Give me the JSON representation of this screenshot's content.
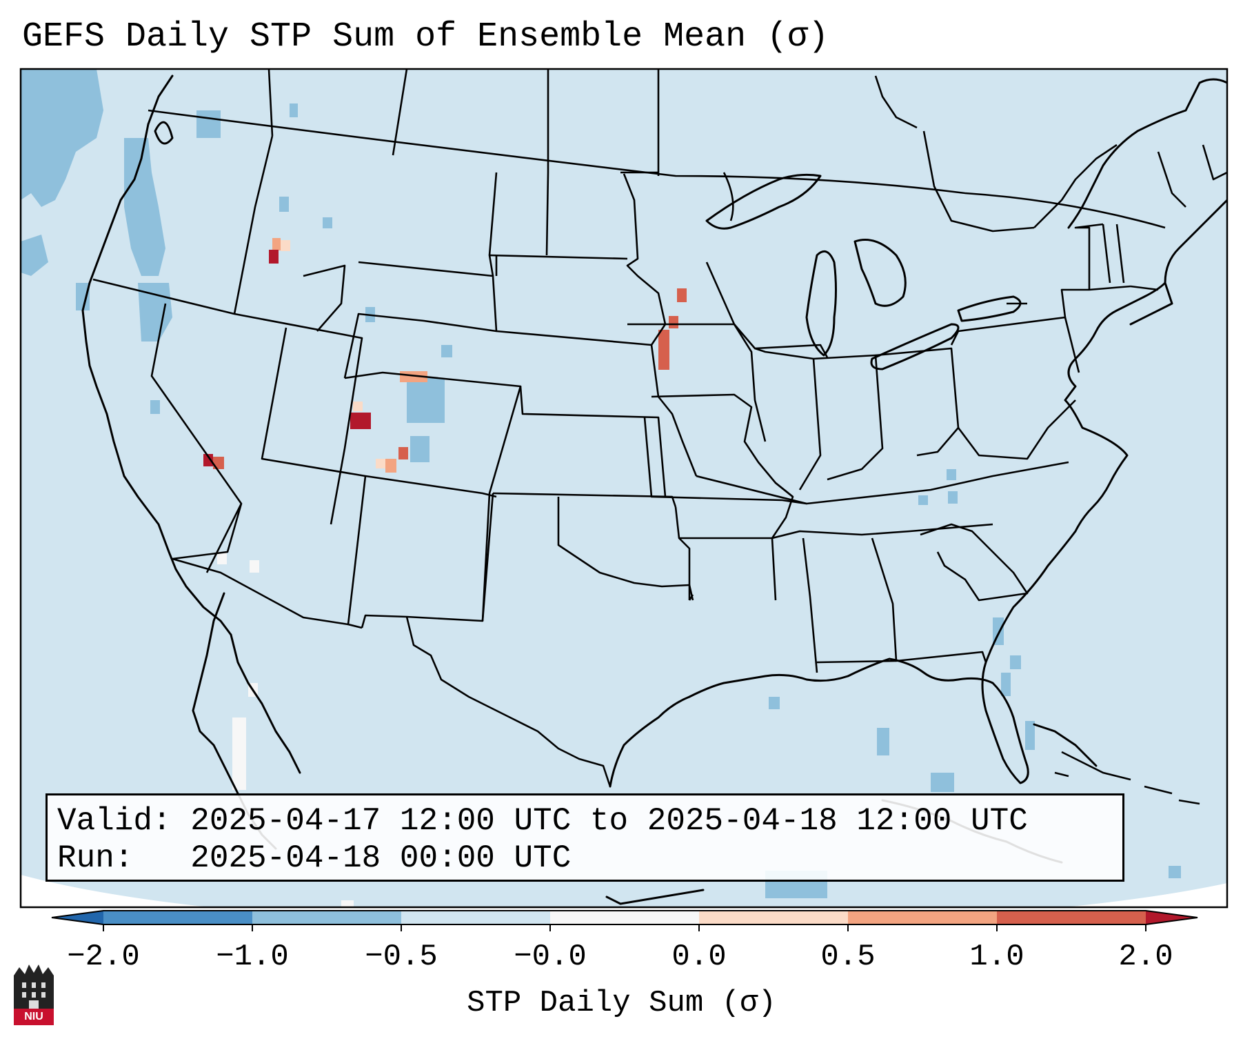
{
  "title": "GEFS Daily STP Sum of Ensemble Mean (σ)",
  "info": {
    "valid": "Valid: 2025-04-17 12:00 UTC to 2025-04-18 12:00 UTC",
    "run": "Run:   2025-04-18 00:00 UTC"
  },
  "colorbar": {
    "label": "STP Daily Sum (σ)",
    "ticks": [
      "−2.0",
      "−1.0",
      "−0.5",
      "−0.0",
      "0.0",
      "0.5",
      "1.0",
      "2.0"
    ],
    "bins": [
      {
        "color": "#4a8fc6",
        "range": "−2.0 to −1.0"
      },
      {
        "color": "#8fc0dc",
        "range": "−1.0 to −0.5"
      },
      {
        "color": "#d1e5f0",
        "range": "−0.5 to −0.0"
      },
      {
        "color": "#f7f7f7",
        "range": "−0.0 to 0.0"
      },
      {
        "color": "#fbdbc7",
        "range": "0.0 to 0.5"
      },
      {
        "color": "#f3a481",
        "range": "0.5 to 1.0"
      },
      {
        "color": "#d6604d",
        "range": "1.0 to 2.0"
      }
    ],
    "under_color": "#2166ac",
    "over_color": "#b2182b"
  },
  "map": {
    "background_color": "#d1e5f0",
    "projection": "Lambert Conformal",
    "region": "CONUS"
  },
  "logo": {
    "text": "NIU",
    "color": "#c8102e"
  }
}
